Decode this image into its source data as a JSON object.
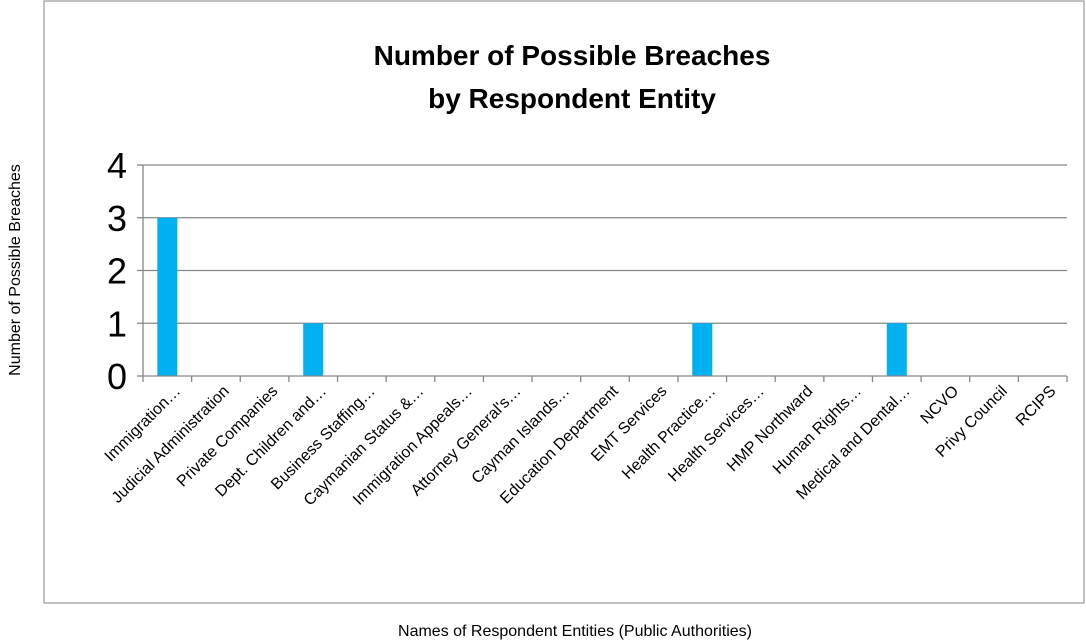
{
  "chart_data": {
    "type": "bar",
    "title_lines": [
      "Number of Possible Breaches",
      "by Respondent Entity"
    ],
    "xlabel": "Names of Respondent Entities (Public Authorities)",
    "ylabel": "Number of Possible Breaches",
    "ylim": [
      0,
      4
    ],
    "yticks": [
      "0",
      "1",
      "2",
      "3",
      "4"
    ],
    "grid": true,
    "legend": "none",
    "bar_color": "#00B0F0",
    "categories": [
      "Immigration…",
      "Judicial Administration",
      "Private Companies",
      "Dept. Children and…",
      "Business Staffing…",
      "Caymanian Status &…",
      "Immigration Appeals…",
      "Attorney General's…",
      "Cayman Islands…",
      "Education Department",
      "EMT Services",
      "Health Practice…",
      "Health Services…",
      "HMP Northward",
      "Human Rights…",
      "Medical and Dental…",
      "NCVO",
      "Privy Council",
      "RCIPS"
    ],
    "values": [
      3,
      0,
      0,
      1,
      0,
      0,
      0,
      0,
      0,
      0,
      0,
      1,
      0,
      0,
      0,
      1,
      0,
      0,
      0
    ]
  }
}
